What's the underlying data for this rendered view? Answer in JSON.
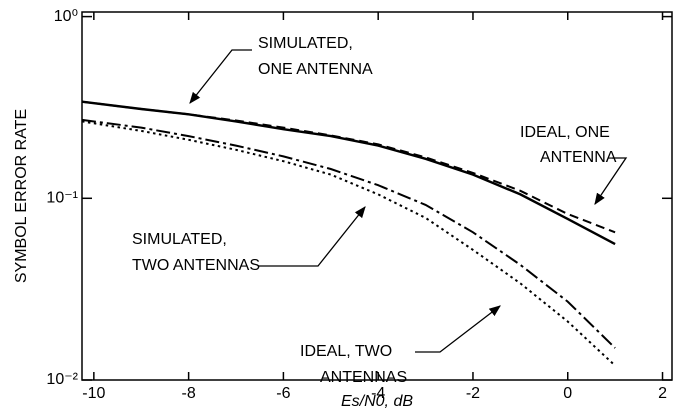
{
  "chart_data": {
    "type": "line",
    "xlabel": "Es/N0, dB",
    "ylabel": "SYMBOL ERROR RATE",
    "log_y": true,
    "xlim": [
      -10.25,
      2.2
    ],
    "ylim": [
      0.01,
      1.06
    ],
    "xticks": [
      -10,
      -8,
      -6,
      -4,
      -2,
      0,
      2
    ],
    "yticks": [
      {
        "value": 1,
        "label": "10⁰"
      },
      {
        "value": 0.1,
        "label": "10⁻¹"
      },
      {
        "value": 0.01,
        "label": "10⁻²"
      }
    ],
    "x": [
      -10.25,
      -9,
      -8,
      -7,
      -6,
      -5,
      -4,
      -3,
      -2,
      -1,
      0,
      1
    ],
    "series": [
      {
        "name": "SIMULATED, ONE ANTENNA",
        "color": "#000000",
        "dash": "solid",
        "values": [
          0.34,
          0.31,
          0.29,
          0.265,
          0.24,
          0.22,
          0.195,
          0.165,
          0.135,
          0.105,
          0.077,
          0.056
        ]
      },
      {
        "name": "IDEAL, ONE ANTENNA",
        "color": "#000000",
        "dash": "dashed",
        "values": [
          0.34,
          0.31,
          0.29,
          0.268,
          0.245,
          0.222,
          0.198,
          0.168,
          0.138,
          0.11,
          0.082,
          0.065
        ]
      },
      {
        "name": "SIMULATED, TWO ANTENNAS",
        "color": "#000000",
        "dash": "dashdot",
        "values": [
          0.27,
          0.245,
          0.22,
          0.195,
          0.17,
          0.145,
          0.118,
          0.092,
          0.065,
          0.043,
          0.027,
          0.015
        ]
      },
      {
        "name": "IDEAL, TWO ANTENNAS",
        "color": "#000000",
        "dash": "dotted",
        "values": [
          0.265,
          0.235,
          0.21,
          0.185,
          0.16,
          0.135,
          0.105,
          0.078,
          0.052,
          0.034,
          0.021,
          0.012
        ]
      }
    ],
    "annotations": [
      {
        "lines": [
          "SIMULATED,",
          "ONE ANTENNA"
        ]
      },
      {
        "lines": [
          "IDEAL, ONE",
          "ANTENNA"
        ]
      },
      {
        "lines": [
          "SIMULATED,",
          "TWO ANTENNAS"
        ]
      },
      {
        "lines": [
          "IDEAL, TWO",
          "ANTENNAS"
        ]
      }
    ]
  }
}
